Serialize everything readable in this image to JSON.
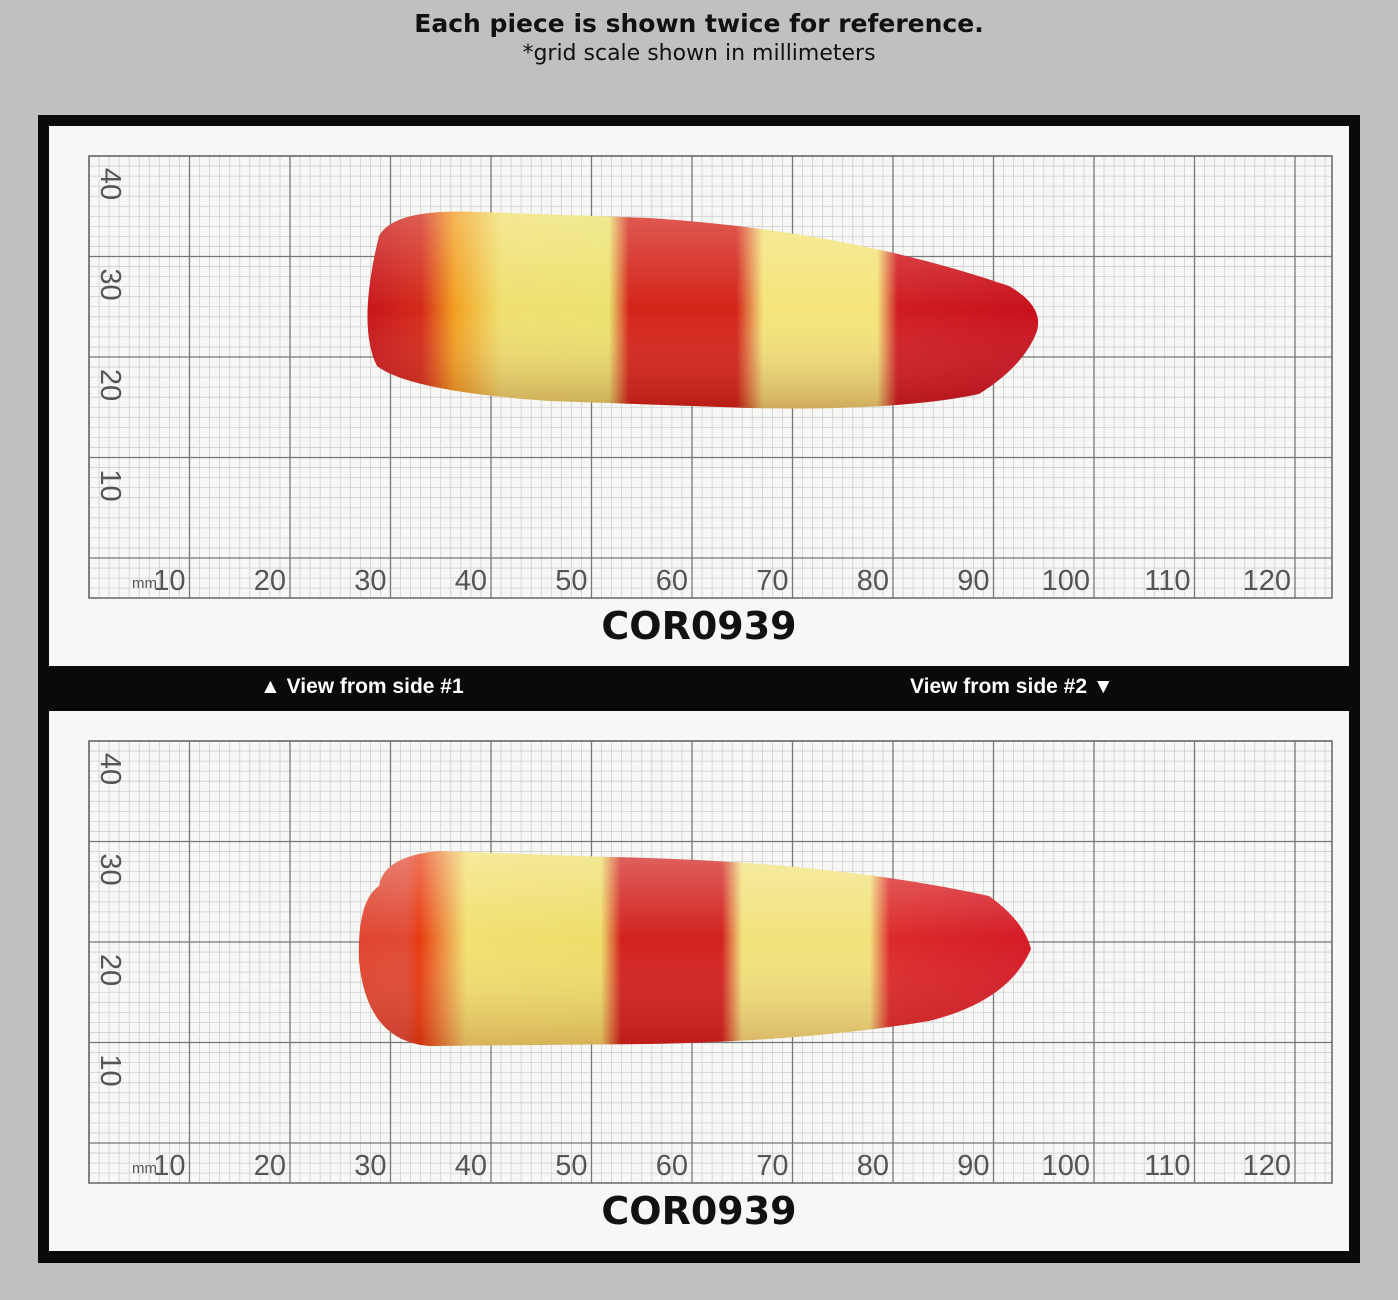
{
  "header": {
    "title": "Each piece is shown twice for reference.",
    "subtitle": "*grid scale shown in millimeters"
  },
  "panels": [
    {
      "code": "COR0939"
    },
    {
      "code": "COR0939"
    }
  ],
  "side_labels": {
    "side1": "▲ View from side #1",
    "side2": "View from side #2 ▼"
  },
  "grid": {
    "unit_label": "mm",
    "x_ticks": [
      "10",
      "20",
      "30",
      "40",
      "50",
      "60",
      "70",
      "80",
      "90",
      "100",
      "110",
      "120"
    ],
    "y_ticks": [
      "40",
      "30",
      "20",
      "10"
    ]
  },
  "colors": {
    "background": "#c0c0c0",
    "frame": "#0a0a0a",
    "stone_red": "#d01a1a",
    "stone_yellow": "#f0e070"
  }
}
